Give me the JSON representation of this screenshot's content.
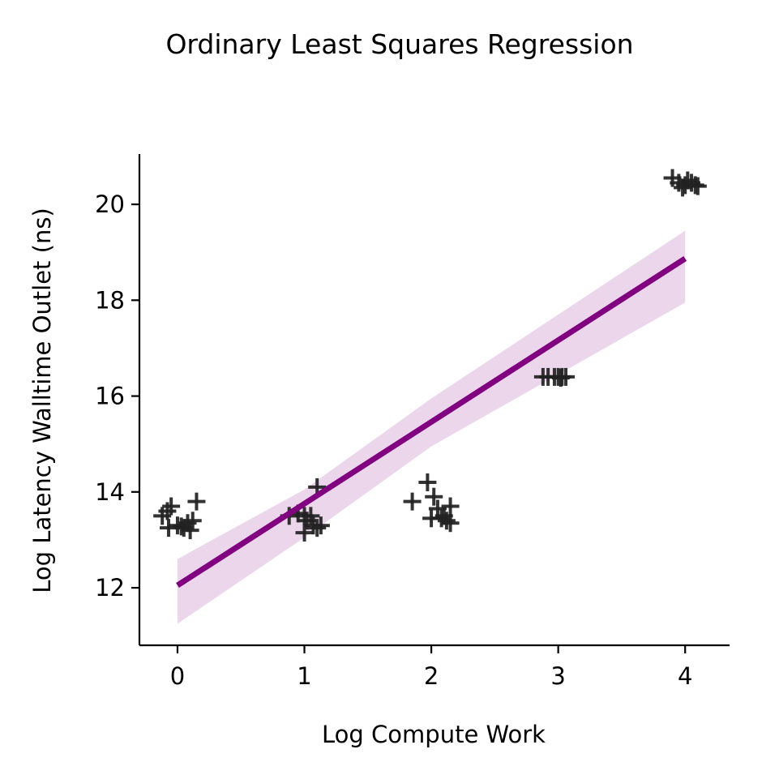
{
  "chart_data": {
    "type": "scatter",
    "title": "Ordinary Least Squares Regression",
    "xlabel": "Log Compute Work",
    "ylabel": "Log Latency Walltime Outlet (ns)",
    "xlim": [
      -0.3,
      4.35
    ],
    "ylim": [
      10.8,
      21.05
    ],
    "xticks": [
      0,
      1,
      2,
      3,
      4
    ],
    "yticks": [
      12,
      14,
      16,
      18,
      20
    ],
    "grid": false,
    "legend": "none",
    "marker": "plus",
    "colors": {
      "points": "#222222",
      "fit_line": "#800080",
      "confidence_band": "#ebd6eb"
    },
    "points": [
      {
        "x": -0.12,
        "y": 13.5
      },
      {
        "x": -0.08,
        "y": 13.6
      },
      {
        "x": -0.05,
        "y": 13.7
      },
      {
        "x": -0.07,
        "y": 13.25
      },
      {
        "x": 0.0,
        "y": 13.3
      },
      {
        "x": 0.05,
        "y": 13.25
      },
      {
        "x": 0.08,
        "y": 13.35
      },
      {
        "x": 0.1,
        "y": 13.2
      },
      {
        "x": 0.12,
        "y": 13.4
      },
      {
        "x": 0.15,
        "y": 13.8
      },
      {
        "x": 0.03,
        "y": 13.28
      },
      {
        "x": 0.88,
        "y": 13.5
      },
      {
        "x": 0.95,
        "y": 13.55
      },
      {
        "x": 1.0,
        "y": 13.5
      },
      {
        "x": 1.02,
        "y": 13.4
      },
      {
        "x": 1.05,
        "y": 13.5
      },
      {
        "x": 1.0,
        "y": 13.15
      },
      {
        "x": 1.07,
        "y": 13.3
      },
      {
        "x": 1.1,
        "y": 13.25
      },
      {
        "x": 1.13,
        "y": 13.3
      },
      {
        "x": 1.1,
        "y": 14.1
      },
      {
        "x": 1.85,
        "y": 13.8
      },
      {
        "x": 1.97,
        "y": 14.2
      },
      {
        "x": 2.02,
        "y": 13.9
      },
      {
        "x": 2.05,
        "y": 13.65
      },
      {
        "x": 2.0,
        "y": 13.45
      },
      {
        "x": 2.08,
        "y": 13.45
      },
      {
        "x": 2.1,
        "y": 13.5
      },
      {
        "x": 2.12,
        "y": 13.4
      },
      {
        "x": 2.15,
        "y": 13.7
      },
      {
        "x": 2.15,
        "y": 13.35
      },
      {
        "x": 2.88,
        "y": 16.4
      },
      {
        "x": 2.92,
        "y": 16.4
      },
      {
        "x": 2.97,
        "y": 16.4
      },
      {
        "x": 3.0,
        "y": 16.4
      },
      {
        "x": 3.03,
        "y": 16.4
      },
      {
        "x": 3.06,
        "y": 16.4
      },
      {
        "x": 3.02,
        "y": 16.38
      },
      {
        "x": 3.9,
        "y": 20.55
      },
      {
        "x": 3.95,
        "y": 20.45
      },
      {
        "x": 4.0,
        "y": 20.4
      },
      {
        "x": 4.02,
        "y": 20.5
      },
      {
        "x": 4.05,
        "y": 20.45
      },
      {
        "x": 4.08,
        "y": 20.4
      },
      {
        "x": 4.1,
        "y": 20.38
      },
      {
        "x": 3.98,
        "y": 20.35
      }
    ],
    "fit": {
      "x": [
        0.0,
        4.0
      ],
      "y": [
        12.05,
        18.87
      ]
    },
    "confidence_band": {
      "x": [
        0.0,
        1.0,
        2.0,
        3.0,
        4.0
      ],
      "lower": [
        11.25,
        13.05,
        14.95,
        16.45,
        17.95
      ],
      "upper": [
        12.6,
        14.05,
        15.95,
        17.7,
        19.45
      ]
    }
  }
}
